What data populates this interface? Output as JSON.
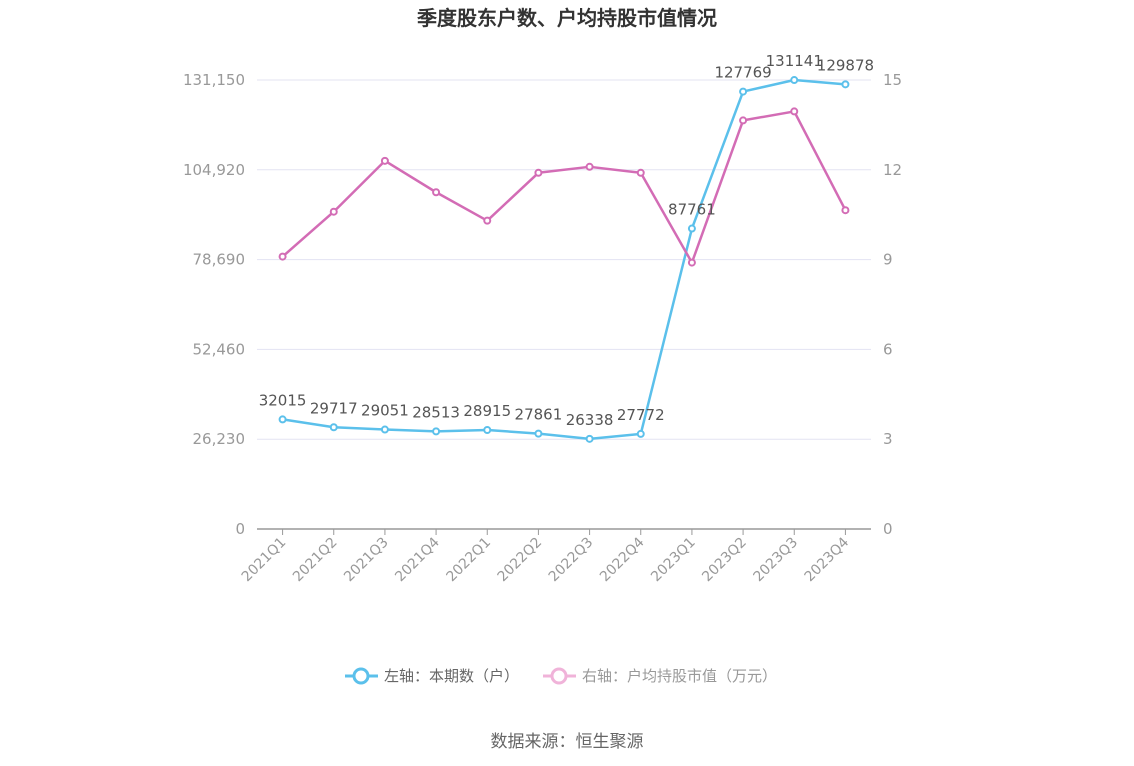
{
  "chart_data": {
    "type": "line",
    "title": "季度股东户数、户均持股市值情况",
    "categories": [
      "2021Q1",
      "2021Q2",
      "2021Q3",
      "2021Q4",
      "2022Q1",
      "2022Q2",
      "2022Q3",
      "2022Q4",
      "2023Q1",
      "2023Q2",
      "2023Q3",
      "2023Q4"
    ],
    "left_axis": {
      "ticks": [
        "0",
        "26,230",
        "52,460",
        "78,690",
        "104,920",
        "131,150"
      ],
      "range": [
        0,
        131150
      ]
    },
    "right_axis": {
      "ticks": [
        "0",
        "3",
        "6",
        "9",
        "12",
        "15"
      ],
      "range": [
        0,
        15
      ]
    },
    "series": [
      {
        "name": "左轴：本期数（户）",
        "axis": "left",
        "color": "#5bc0eb",
        "values": [
          32015,
          29717,
          29051,
          28513,
          28915,
          27861,
          26338,
          27772,
          87761,
          127769,
          131141,
          129878
        ],
        "labels": [
          "32015",
          "29717",
          "29051",
          "28513",
          "28915",
          "27861",
          "26338",
          "27772",
          "87761",
          "127769",
          "131141",
          "129878"
        ]
      },
      {
        "name": "右轴：户均持股市值（万元）",
        "axis": "right",
        "color": "#d36cb5",
        "values": [
          9.1,
          10.6,
          12.3,
          11.25,
          10.3,
          11.9,
          12.1,
          11.9,
          8.9,
          13.65,
          13.95,
          10.65
        ]
      }
    ],
    "grid": true,
    "legend_position": "bottom"
  },
  "source": "数据来源：恒生聚源"
}
